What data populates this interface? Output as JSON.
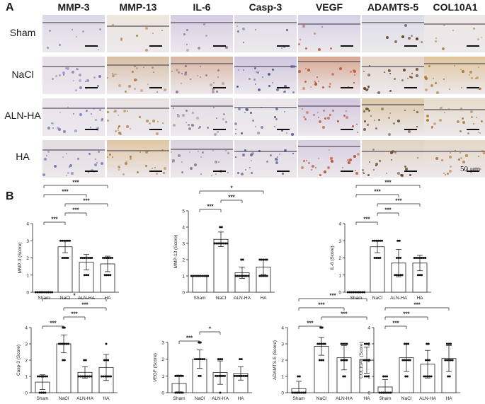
{
  "panel_a": {
    "letter": "A",
    "columns": [
      "MMP-3",
      "MMP-13",
      "IL-6",
      "Casp-3",
      "VEGF",
      "ADAMTS-5",
      "COL10A1"
    ],
    "rows": [
      "Sham",
      "NaCl",
      "ALN-HA",
      "HA"
    ],
    "scale_label": "50 μm",
    "stain_colors": {
      "background": "#e9e4e6",
      "hematoxylin": "#8f86c2",
      "dab": "#b97a3c"
    }
  },
  "panel_b": {
    "letter": "B",
    "significance_marks": [
      "***",
      "*"
    ]
  },
  "chart_data": [
    {
      "type": "bar",
      "categories": [
        "Sham",
        "NaCl",
        "ALN-HA",
        "HA"
      ],
      "values": [
        0,
        2.65,
        1.75,
        1.65
      ],
      "errors": [
        0.02,
        0.35,
        0.45,
        0.45
      ],
      "points": [
        [
          0,
          0,
          0,
          0,
          0,
          0,
          0,
          0,
          0,
          0
        ],
        [
          2,
          3,
          2,
          3,
          3,
          2,
          3,
          2,
          3,
          3
        ],
        [
          1,
          2,
          2,
          1,
          2,
          2,
          1,
          2,
          2,
          2
        ],
        [
          1,
          2,
          2,
          1,
          2,
          1,
          2,
          1,
          2,
          2
        ]
      ],
      "ylabel": "MMP-3 (Score)",
      "yticks": [
        0,
        1,
        2,
        3,
        4
      ],
      "ylim": [
        0,
        4
      ],
      "significance": [
        {
          "from": 0,
          "to": 1,
          "label": "***"
        },
        {
          "from": 1,
          "to": 2,
          "label": "***"
        },
        {
          "from": 1,
          "to": 3,
          "label": "***"
        },
        {
          "from": 0,
          "to": 2,
          "label": "***"
        },
        {
          "from": 0,
          "to": 3,
          "label": "***"
        }
      ]
    },
    {
      "type": "bar",
      "categories": [
        "Sham",
        "NaCl",
        "ALN-HA",
        "HA"
      ],
      "values": [
        1.0,
        3.25,
        1.2,
        1.55
      ],
      "errors": [
        0.02,
        0.45,
        0.35,
        0.45
      ],
      "points": [
        [
          1,
          1,
          1,
          1,
          1,
          1,
          1,
          1,
          1,
          1
        ],
        [
          3,
          3,
          3,
          4,
          3,
          3,
          4,
          3,
          3,
          3
        ],
        [
          1,
          1,
          1,
          2,
          1,
          1,
          1,
          2,
          1,
          1
        ],
        [
          1,
          2,
          2,
          1,
          2,
          1,
          2,
          1,
          2,
          1
        ]
      ],
      "ylabel": "MMP-13 (Score)",
      "yticks": [
        0,
        1,
        2,
        3,
        4,
        5
      ],
      "ylim": [
        0,
        5
      ],
      "significance": [
        {
          "from": 0,
          "to": 1,
          "label": "***"
        },
        {
          "from": 1,
          "to": 2,
          "label": "***"
        },
        {
          "from": 0,
          "to": 3,
          "label": "*"
        }
      ]
    },
    {
      "type": "bar",
      "categories": [
        "Sham",
        "NaCl",
        "ALN-HA",
        "HA"
      ],
      "values": [
        0,
        2.65,
        1.7,
        1.7
      ],
      "errors": [
        0.02,
        0.35,
        0.8,
        0.45
      ],
      "points": [
        [
          0,
          0,
          0,
          0,
          0,
          0,
          0,
          0,
          0,
          0
        ],
        [
          2,
          3,
          2,
          3,
          3,
          2,
          3,
          2,
          3,
          3
        ],
        [
          1,
          3,
          1,
          2,
          1,
          3,
          1,
          2,
          1,
          2
        ],
        [
          1,
          2,
          2,
          1,
          2,
          2,
          1,
          2,
          2,
          2
        ]
      ],
      "ylabel": "IL-6 (Score)",
      "yticks": [
        0,
        1,
        2,
        3,
        4
      ],
      "ylim": [
        0,
        4
      ],
      "significance": [
        {
          "from": 0,
          "to": 1,
          "label": "***"
        },
        {
          "from": 1,
          "to": 2,
          "label": "***"
        },
        {
          "from": 1,
          "to": 3,
          "label": "***"
        },
        {
          "from": 0,
          "to": 2,
          "label": "***"
        },
        {
          "from": 0,
          "to": 3,
          "label": "***"
        }
      ]
    },
    {
      "type": "bar",
      "categories": [
        "Sham",
        "NaCl",
        "ALN-HA",
        "HA"
      ],
      "values": [
        0.65,
        3.0,
        1.25,
        1.55
      ],
      "errors": [
        0.45,
        0.55,
        0.35,
        0.8
      ],
      "points": [
        [
          1,
          0,
          1,
          1,
          0,
          1,
          1,
          0,
          1,
          0
        ],
        [
          3,
          4,
          3,
          2,
          3,
          4,
          3,
          2,
          3,
          3
        ],
        [
          1,
          1,
          1,
          2,
          1,
          1,
          2,
          1,
          1,
          1
        ],
        [
          1,
          2,
          1,
          3,
          1,
          2,
          1,
          1,
          2,
          1
        ]
      ],
      "ylabel": "Casp-3 (Score)",
      "yticks": [
        0,
        1,
        2,
        3,
        4
      ],
      "ylim": [
        0,
        4
      ],
      "significance": [
        {
          "from": 0,
          "to": 1,
          "label": "***"
        },
        {
          "from": 1,
          "to": 2,
          "label": "***"
        },
        {
          "from": 1,
          "to": 3,
          "label": "***"
        },
        {
          "from": 0,
          "to": 3,
          "label": "*"
        }
      ]
    },
    {
      "type": "bar",
      "categories": [
        "Sham",
        "NaCl",
        "ALN-HA",
        "HA"
      ],
      "values": [
        0.55,
        2.0,
        1.2,
        1.15
      ],
      "errors": [
        0.5,
        0.55,
        0.7,
        0.4
      ],
      "points": [
        [
          1,
          0,
          1,
          0,
          1,
          0,
          1,
          0,
          1,
          0
        ],
        [
          2,
          3,
          2,
          1,
          2,
          3,
          2,
          1,
          2,
          2
        ],
        [
          1,
          2,
          1,
          0,
          1,
          2,
          1,
          1,
          2,
          1
        ],
        [
          1,
          1,
          1,
          2,
          1,
          1,
          1,
          1,
          2,
          1
        ]
      ],
      "ylabel": "VEGF (Score)",
      "yticks": [
        0,
        1,
        2,
        3
      ],
      "ylim": [
        0,
        3
      ],
      "significance": [
        {
          "from": 0,
          "to": 1,
          "label": "***"
        },
        {
          "from": 1,
          "to": 2,
          "label": "*"
        }
      ]
    },
    {
      "type": "bar",
      "categories": [
        "Sham",
        "NaCl",
        "ALN-HA",
        "HA"
      ],
      "values": [
        0.25,
        2.85,
        2.15,
        2.0
      ],
      "errors": [
        0.45,
        0.55,
        0.75,
        0.8
      ],
      "points": [
        [
          0,
          0,
          1,
          0,
          0,
          1,
          0,
          0,
          0,
          0
        ],
        [
          3,
          4,
          2,
          3,
          2,
          3,
          4,
          2,
          3,
          3
        ],
        [
          2,
          3,
          1,
          3,
          2,
          1,
          3,
          2,
          2,
          3
        ],
        [
          1,
          3,
          2,
          1,
          3,
          2,
          1,
          3,
          2,
          2
        ]
      ],
      "ylabel": "ADAMTS-5 (Score)",
      "yticks": [
        0,
        1,
        2,
        3,
        4
      ],
      "ylim": [
        0,
        4
      ],
      "significance": [
        {
          "from": 0,
          "to": 1,
          "label": "***"
        },
        {
          "from": 1,
          "to": 3,
          "label": "***"
        },
        {
          "from": 0,
          "to": 2,
          "label": "***"
        },
        {
          "from": 0,
          "to": 3,
          "label": "***"
        }
      ]
    },
    {
      "type": "bar",
      "categories": [
        "Sham",
        "NaCl",
        "ALN-HA",
        "HA"
      ],
      "values": [
        0.35,
        2.15,
        1.75,
        2.1
      ],
      "errors": [
        0.45,
        0.85,
        0.85,
        0.8
      ],
      "points": [
        [
          0,
          1,
          0,
          0,
          1,
          0,
          0,
          0,
          1,
          0
        ],
        [
          1,
          3,
          2,
          3,
          1,
          2,
          3,
          2,
          2,
          2
        ],
        [
          1,
          3,
          1,
          2,
          1,
          3,
          2,
          1,
          2,
          1
        ],
        [
          1,
          3,
          2,
          3,
          1,
          2,
          3,
          2,
          2,
          2
        ]
      ],
      "ylabel": "COL10A1 (Score)",
      "yticks": [
        0,
        1,
        2,
        3,
        4
      ],
      "ylim": [
        0,
        4
      ],
      "significance": [
        {
          "from": 0,
          "to": 1,
          "label": "***"
        },
        {
          "from": 0,
          "to": 2,
          "label": "***"
        },
        {
          "from": 0,
          "to": 3,
          "label": "***"
        }
      ]
    }
  ]
}
